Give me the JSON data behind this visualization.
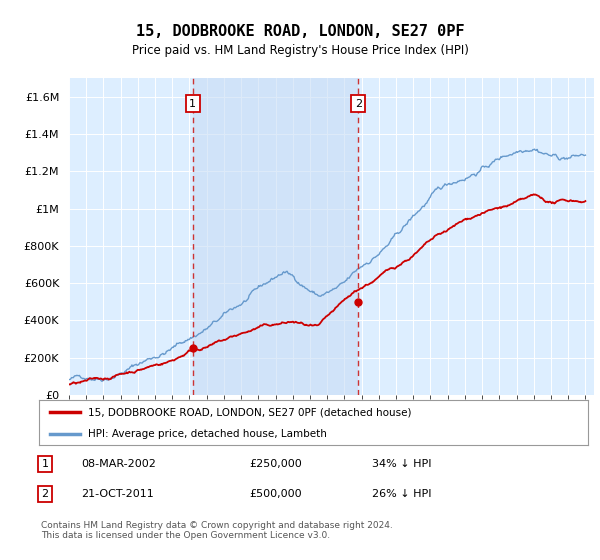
{
  "title": "15, DODBROOKE ROAD, LONDON, SE27 0PF",
  "subtitle": "Price paid vs. HM Land Registry's House Price Index (HPI)",
  "xlim_start": 1995.0,
  "xlim_end": 2025.5,
  "ylim": [
    0,
    1700000
  ],
  "yticks": [
    0,
    200000,
    400000,
    600000,
    800000,
    1000000,
    1200000,
    1400000,
    1600000
  ],
  "ytick_labels": [
    "£0",
    "£200K",
    "£400K",
    "£600K",
    "£800K",
    "£1M",
    "£1.2M",
    "£1.4M",
    "£1.6M"
  ],
  "purchase1_x": 2002.19,
  "purchase1_y": 250000,
  "purchase2_x": 2011.81,
  "purchase2_y": 500000,
  "line_color_property": "#cc0000",
  "line_color_hpi": "#6699cc",
  "plot_bg_color": "#ddeeff",
  "fill_between_color": "#c8ddf0",
  "legend_line1": "15, DODBROOKE ROAD, LONDON, SE27 0PF (detached house)",
  "legend_line2": "HPI: Average price, detached house, Lambeth",
  "table_row1": [
    "1",
    "08-MAR-2002",
    "£250,000",
    "34% ↓ HPI"
  ],
  "table_row2": [
    "2",
    "21-OCT-2011",
    "£500,000",
    "26% ↓ HPI"
  ],
  "footer": "Contains HM Land Registry data © Crown copyright and database right 2024.\nThis data is licensed under the Open Government Licence v3.0.",
  "vline_color": "#cc3333",
  "grid_color": "#c8d8e8",
  "white_grid_color": "#ffffff"
}
